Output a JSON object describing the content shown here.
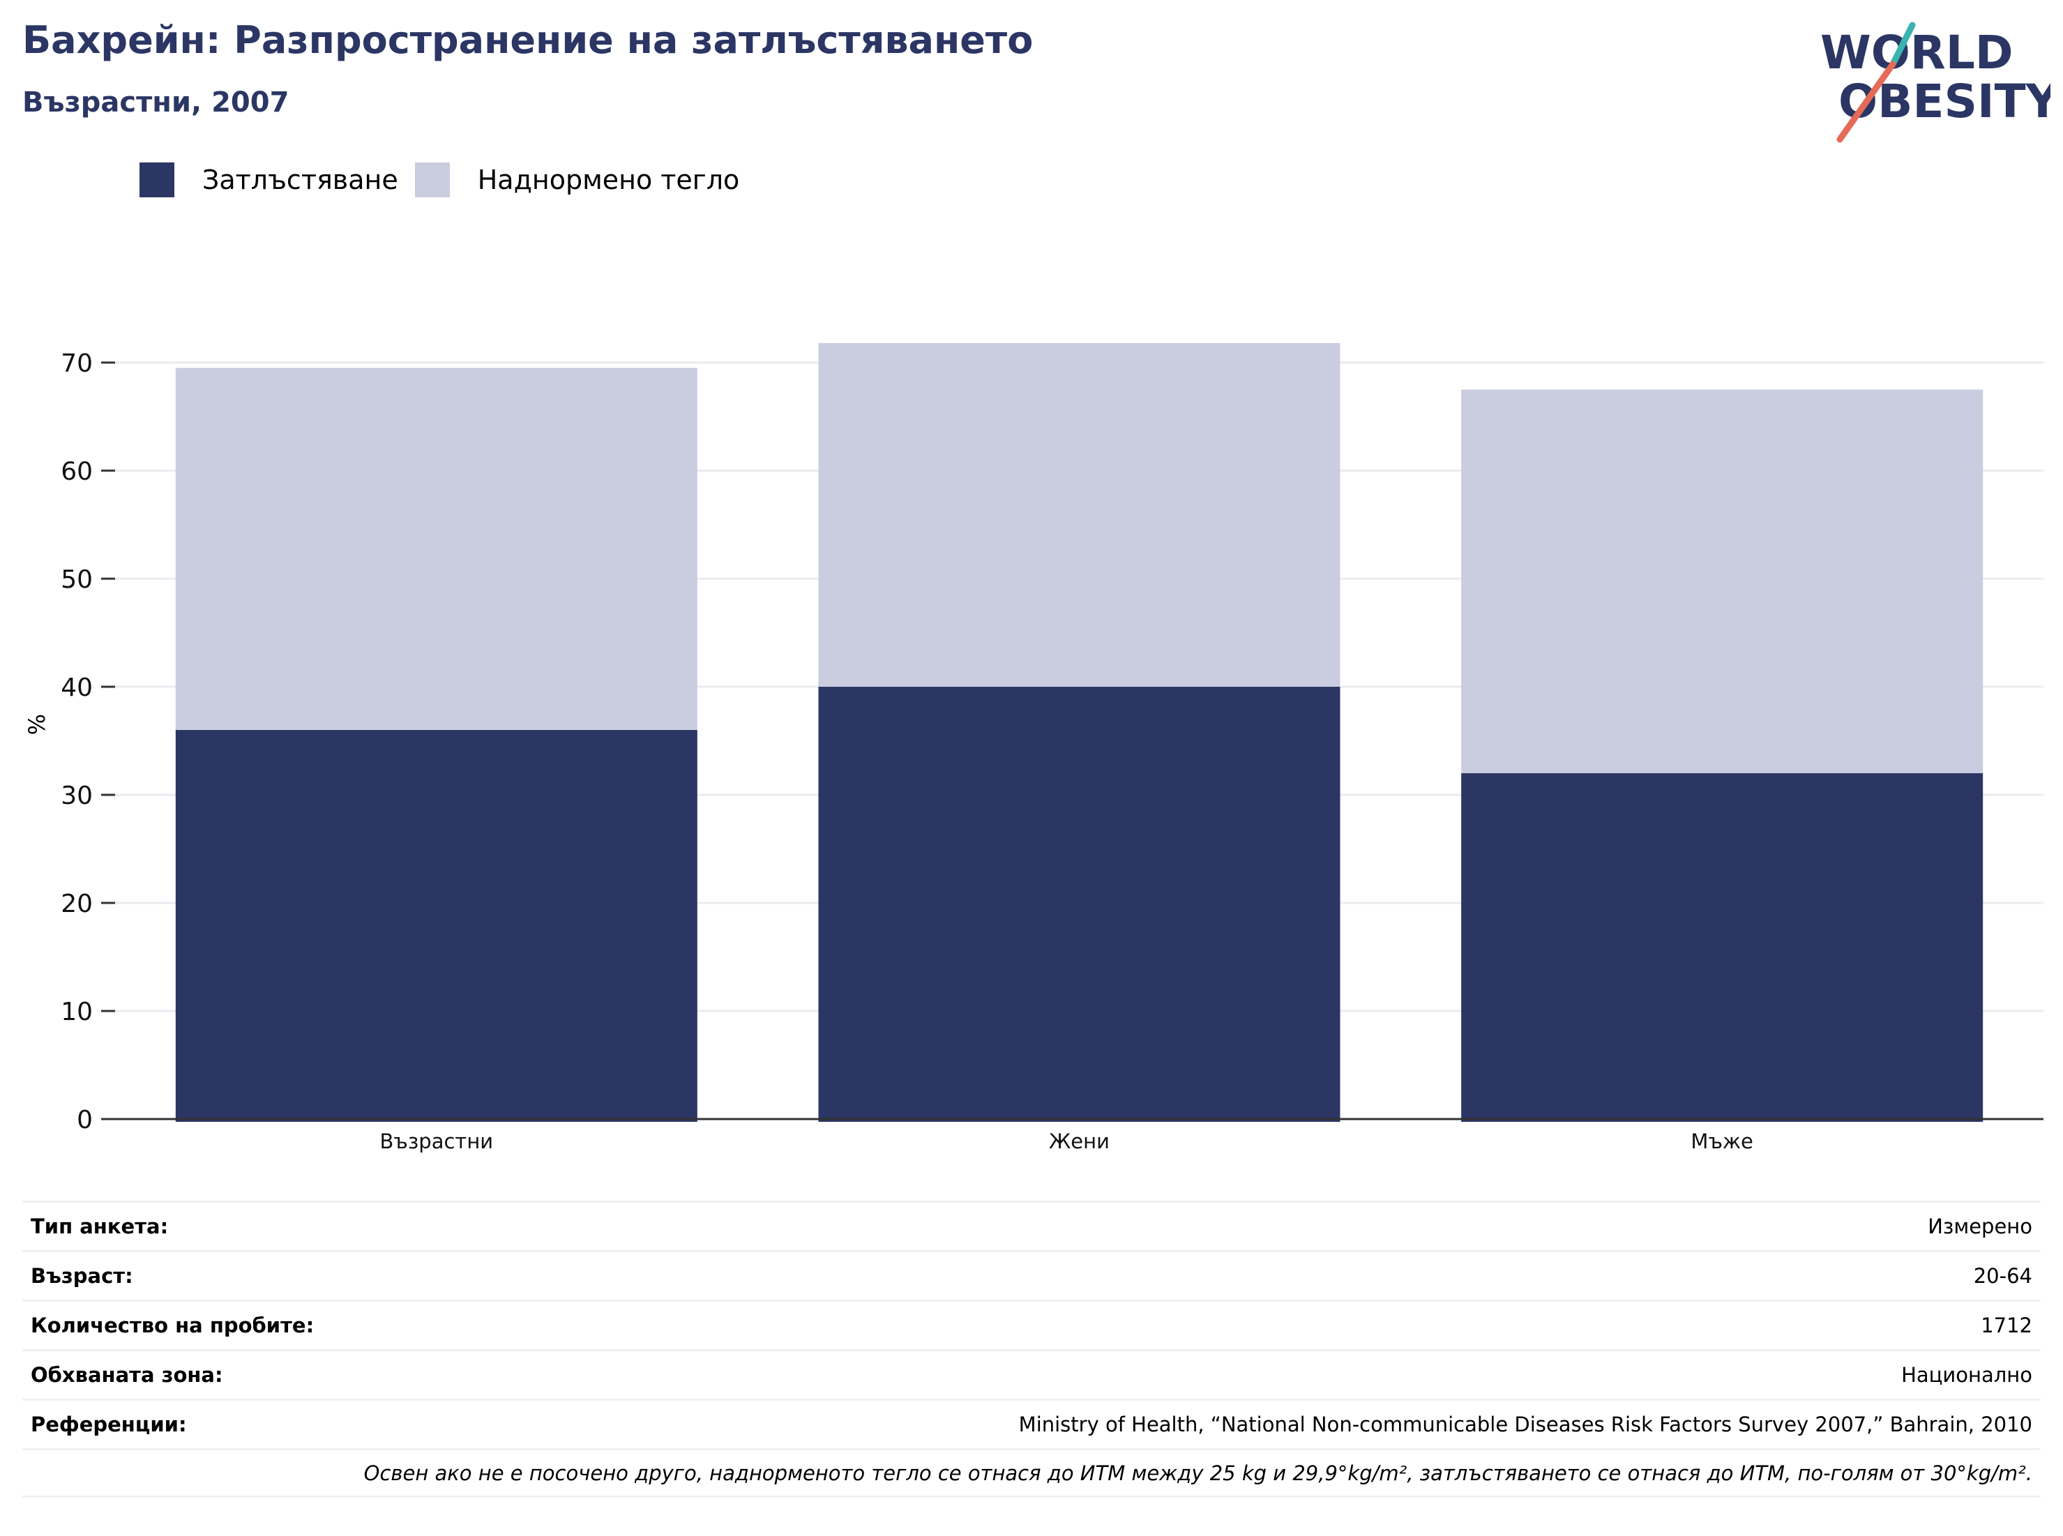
{
  "header": {
    "title": "Бахрейн: Разпространение на затлъстяването",
    "subtitle": "Възрастни, 2007"
  },
  "logo": {
    "line1": "WORLD",
    "line2": "OBESITY"
  },
  "colors": {
    "obesity": "#2b3664",
    "overweight": "#cacce0",
    "title": "#2b3664",
    "logo_teal": "#3bb3b0",
    "logo_red": "#e56a57"
  },
  "legend": [
    {
      "label": "Затлъстяване",
      "color": "#2b3664"
    },
    {
      "label": "Наднормено тегло",
      "color": "#cacce0"
    }
  ],
  "chart_data": {
    "type": "bar",
    "stacked": true,
    "categories": [
      "Възрастни",
      "Жени",
      "Мъже"
    ],
    "series": [
      {
        "name": "Затлъстяване",
        "values": [
          36,
          40,
          32
        ]
      },
      {
        "name": "Наднормено тегло",
        "values": [
          33.5,
          31.8,
          35.5
        ]
      }
    ],
    "ylabel": "%",
    "ylim": [
      0,
      70
    ],
    "yticks": [
      0,
      10,
      20,
      30,
      40,
      50,
      60,
      70
    ],
    "grid": true,
    "legend_position": "top-left"
  },
  "info": [
    {
      "key": "Тип анкета:",
      "value": "Измерено"
    },
    {
      "key": "Възраст:",
      "value": "20-64"
    },
    {
      "key": "Количество на пробите:",
      "value": "1712"
    },
    {
      "key": "Обхваната зона:",
      "value": "Национално"
    },
    {
      "key": "Референции:",
      "value": "Ministry of Health, “National Non-communicable Diseases Risk Factors Survey 2007,” Bahrain, 2010"
    }
  ],
  "note": "Освен ако не е посочено друго, наднорменото тегло се отнася до ИТМ между 25 kg и 29,9°kg/m², затлъстяването се отнася до ИТМ, по-голям от 30°kg/m²."
}
